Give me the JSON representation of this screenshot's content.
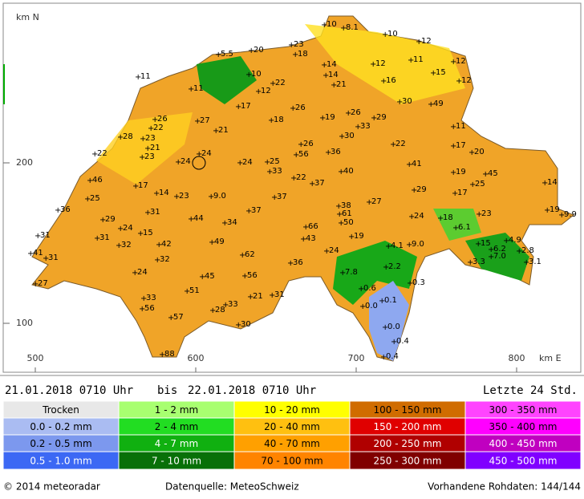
{
  "map": {
    "x_axis": {
      "label": "km E",
      "ticks": [
        500,
        600,
        700,
        800
      ]
    },
    "y_axis": {
      "label": "km N",
      "ticks": [
        100,
        200
      ]
    },
    "station_values": [
      "11",
      "11",
      "5.5",
      "20",
      "23",
      "18",
      "10",
      "8.1",
      "10",
      "12",
      "14",
      "14",
      "21",
      "12",
      "16",
      "11",
      "12",
      "15",
      "12",
      "10",
      "12",
      "22",
      "17",
      "26",
      "18",
      "19",
      "26",
      "33",
      "29",
      "30",
      "49",
      "11",
      "17",
      "20",
      "26",
      "22",
      "28",
      "23",
      "21",
      "23",
      "22",
      "27",
      "21",
      "30",
      "26",
      "56",
      "36",
      "22",
      "24",
      "24",
      "24",
      "25",
      "33",
      "40",
      "41",
      "19",
      "45",
      "25",
      "17",
      "29",
      "14",
      "22",
      "37",
      "46",
      "17",
      "14",
      "23",
      "9.0",
      "37",
      "25",
      "36",
      "38",
      "61",
      "50",
      "27",
      "31",
      "44",
      "34",
      "37",
      "24",
      "18",
      "6.1",
      "23",
      "19",
      "9.9",
      "29",
      "24",
      "15",
      "31",
      "31",
      "32",
      "42",
      "49",
      "66",
      "43",
      "19",
      "4.1",
      "9.0",
      "41",
      "31",
      "32",
      "62",
      "24",
      "36",
      "15",
      "6.2",
      "4.9",
      "7.0",
      "2.8",
      "3.3",
      "3.1",
      "24",
      "45",
      "56",
      "7.8",
      "2.2",
      "0.3",
      "27",
      "51",
      "0.6",
      "0.1",
      "0.0",
      "33",
      "21",
      "31",
      "33",
      "28",
      "56",
      "57",
      "0.0",
      "0.4",
      "30",
      "0.4",
      "88"
    ]
  },
  "header": {
    "start": "21.01.2018 0710 Uhr",
    "separator": "bis",
    "end": "22.01.2018 0710 Uhr",
    "period": "Letzte 24 Std."
  },
  "legend": {
    "columns": [
      {
        "items": [
          {
            "label": "Trocken",
            "color": "#e8e8e8"
          },
          {
            "label": "0.0 - 0.2 mm",
            "color": "#aabcf2"
          },
          {
            "label": "0.2 - 0.5 mm",
            "color": "#7c98ee"
          },
          {
            "label": "0.5 - 1.0 mm",
            "color": "#3c68f4"
          }
        ]
      },
      {
        "items": [
          {
            "label": "1 - 2 mm",
            "color": "#a8ff70"
          },
          {
            "label": "2 - 4 mm",
            "color": "#22dd22"
          },
          {
            "label": "4 - 7 mm",
            "color": "#10b010"
          },
          {
            "label": "7 - 10 mm",
            "color": "#087008"
          }
        ]
      },
      {
        "items": [
          {
            "label": "10 - 20 mm",
            "color": "#ffff00"
          },
          {
            "label": "20 - 40 mm",
            "color": "#ffc010"
          },
          {
            "label": "40 - 70 mm",
            "color": "#ffa000"
          },
          {
            "label": "70 - 100 mm",
            "color": "#ff8400"
          }
        ]
      },
      {
        "items": [
          {
            "label": "100 - 150 mm",
            "color": "#d06c00"
          },
          {
            "label": "150 - 200 mm",
            "color": "#e00000"
          },
          {
            "label": "200 - 250 mm",
            "color": "#b00000"
          },
          {
            "label": "250 - 300 mm",
            "color": "#800000"
          }
        ]
      },
      {
        "items": [
          {
            "label": "300 - 350 mm",
            "color": "#ff44ff"
          },
          {
            "label": "350 - 400 mm",
            "color": "#ff00ff"
          },
          {
            "label": "400 - 450 mm",
            "color": "#c000c0"
          },
          {
            "label": "450 - 500 mm",
            "color": "#8000ff"
          }
        ]
      }
    ]
  },
  "footer": {
    "copyright": "© 2014 meteoradar",
    "source": "Datenquelle: MeteoSchweiz",
    "data": "Vorhandene Rohdaten: 144/144"
  }
}
